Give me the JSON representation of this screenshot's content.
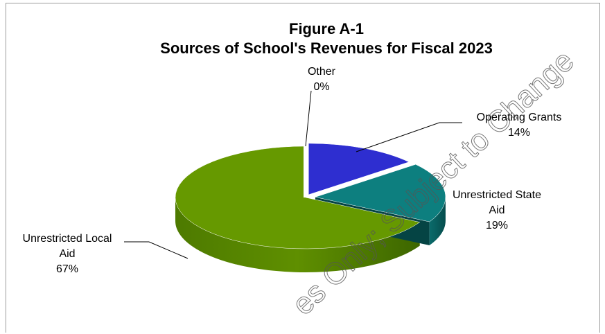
{
  "chart_data": {
    "type": "pie",
    "title": "Figure A-1",
    "subtitle": "Sources of School's Revenues for Fiscal 2023",
    "categories": [
      "Operating Grants",
      "Unrestricted State Aid",
      "Unrestricted Local Aid",
      "Other"
    ],
    "values": [
      14,
      19,
      67,
      0
    ],
    "value_labels": [
      "14%",
      "19%",
      "67%",
      "0%"
    ],
    "label_lines": {
      "operating_grants": [
        "Operating Grants",
        "14%"
      ],
      "state_aid": [
        "Unrestricted State",
        "Aid",
        "19%"
      ],
      "local_aid": [
        "Unrestricted Local",
        "Aid",
        "67%"
      ],
      "other": [
        "Other",
        "0%"
      ]
    },
    "colors": [
      "#2e2ed0",
      "#0d7f7f",
      "#669900",
      "#ffffff"
    ],
    "style": "3d-exploded",
    "legend": "none"
  },
  "watermark": "es Only; Subject to Change"
}
